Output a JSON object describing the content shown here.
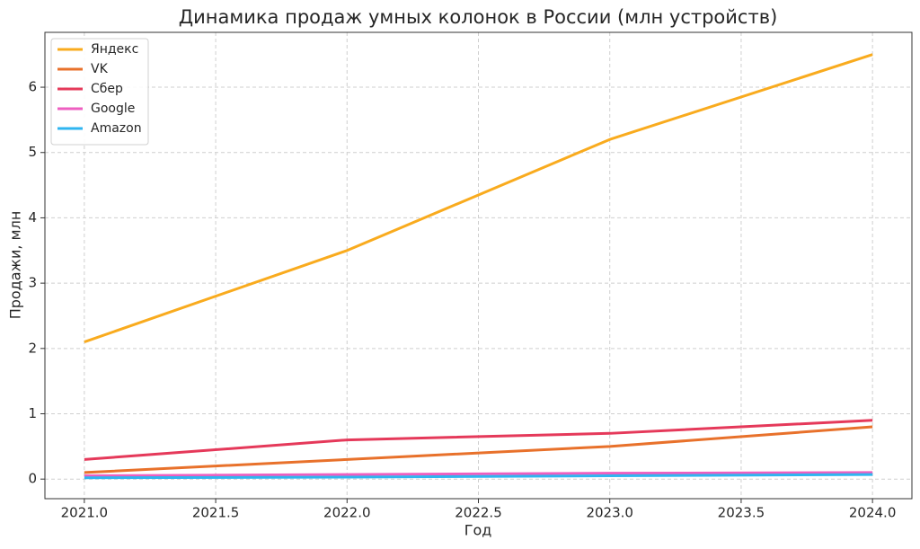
{
  "chart_data": {
    "type": "line",
    "title": "Динамика продаж умных колонок в России (млн устройств)",
    "xlabel": "Год",
    "ylabel": "Продажи, млн",
    "x": [
      2021,
      2022,
      2023,
      2024
    ],
    "series": [
      {
        "name": "Яндекс",
        "color": "#f9ab1e",
        "values": [
          2.1,
          3.5,
          5.2,
          6.5
        ]
      },
      {
        "name": "VK",
        "color": "#e8712b",
        "values": [
          0.1,
          0.3,
          0.5,
          0.8
        ]
      },
      {
        "name": "Сбер",
        "color": "#e5395a",
        "values": [
          0.3,
          0.6,
          0.7,
          0.9
        ]
      },
      {
        "name": "Google",
        "color": "#ee5fc0",
        "values": [
          0.05,
          0.07,
          0.09,
          0.1
        ]
      },
      {
        "name": "Amazon",
        "color": "#2fb5f0",
        "values": [
          0.02,
          0.03,
          0.05,
          0.07
        ]
      }
    ],
    "xlim": [
      2020.85,
      2024.15
    ],
    "xticks": [
      {
        "value": 2021,
        "label": "2021.0"
      },
      2021.5,
      {
        "value": 2022,
        "label": "2022.0"
      },
      2022.5,
      {
        "value": 2023,
        "label": "2023.0"
      },
      2023.5,
      {
        "value": 2024,
        "label": "2024.0"
      }
    ],
    "ylim": [
      -0.3,
      6.84
    ],
    "yticks": [
      0,
      1,
      2,
      3,
      4,
      5,
      6
    ],
    "grid": true,
    "legend": "upper-left"
  }
}
